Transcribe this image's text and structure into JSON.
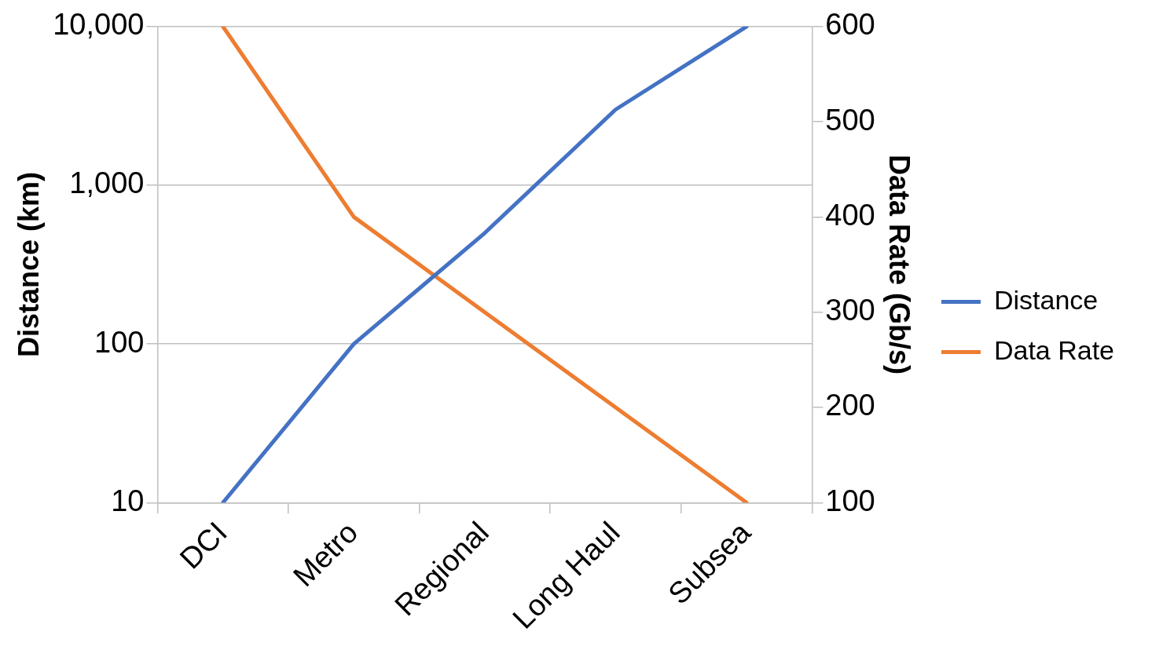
{
  "chart_data": {
    "type": "line",
    "categories": [
      "DCI",
      "Metro",
      "Regional",
      "Long Haul",
      "Subsea"
    ],
    "series": [
      {
        "name": "Distance",
        "color": "#4472c4",
        "values": [
          10,
          100,
          500,
          3000,
          10000
        ]
      },
      {
        "name": "Data Rate",
        "color": "#ed7d31",
        "values": [
          600,
          400,
          300,
          200,
          100
        ],
        "axis": "y2"
      }
    ],
    "ylabel": "Distance (km)",
    "y2label": "Data Rate (Gb/s)",
    "log": "y",
    "ylim": [
      10,
      10000
    ],
    "yticks": [
      {
        "value": 10,
        "label": "10"
      },
      {
        "value": 100,
        "label": "100"
      },
      {
        "value": 1000,
        "label": "1,000"
      },
      {
        "value": 10000,
        "label": "10,000"
      }
    ],
    "y2lim": [
      100,
      600
    ],
    "y2ticks": [
      100,
      200,
      300,
      400,
      500,
      600
    ],
    "grid": "y",
    "legend": "right",
    "marker": "none",
    "line_style": "solid"
  }
}
